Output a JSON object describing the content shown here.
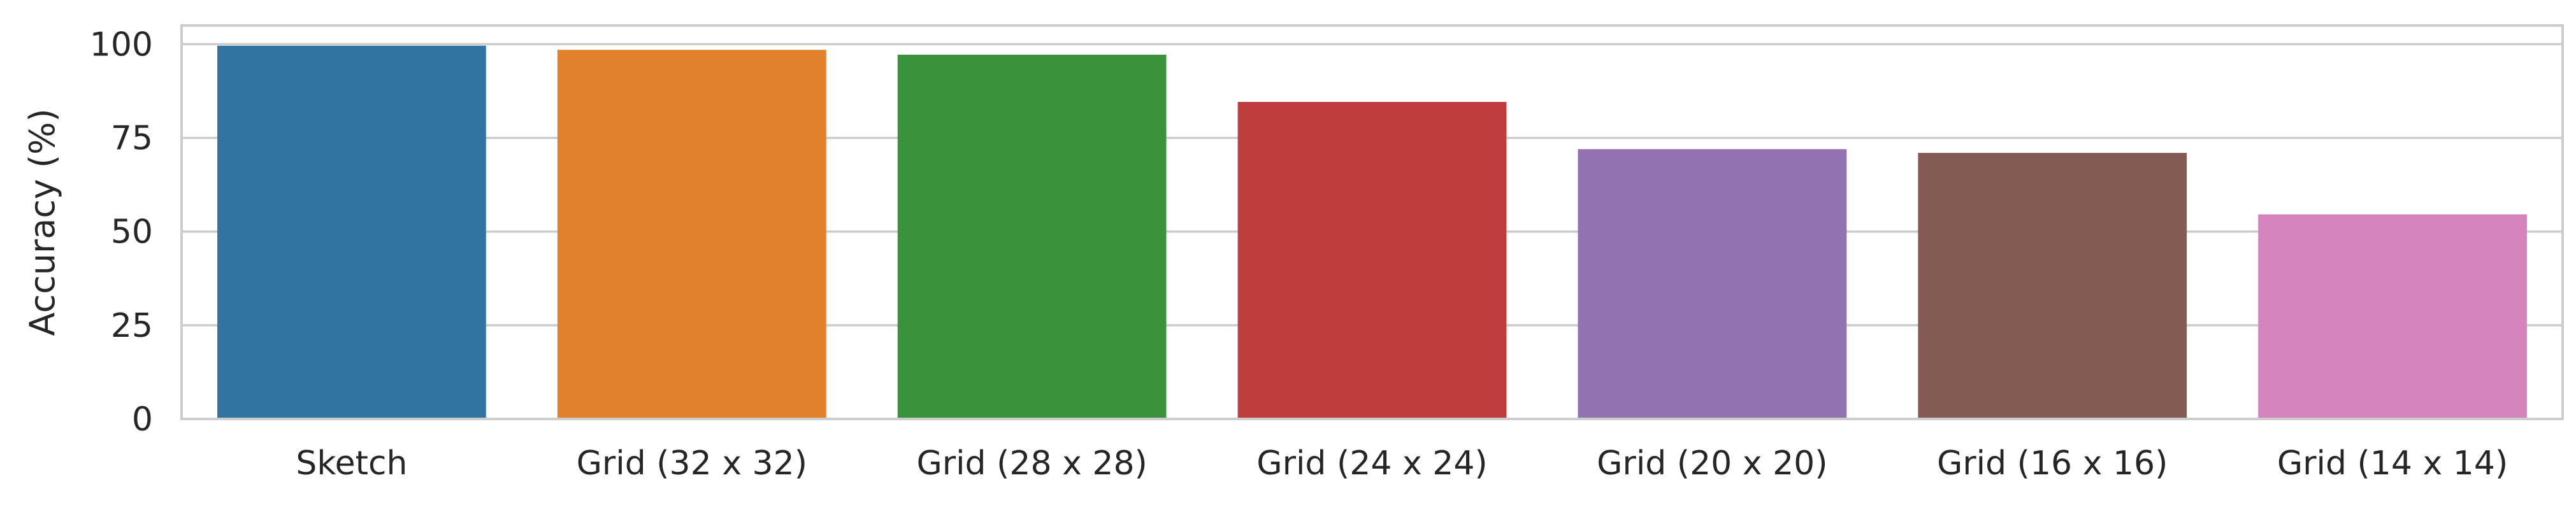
{
  "chart_data": {
    "type": "bar",
    "categories": [
      "Sketch",
      "Grid (32 x 32)",
      "Grid (28 x 28)",
      "Grid (24 x 24)",
      "Grid (20 x 20)",
      "Grid (16 x 16)",
      "Grid (14 x 14)"
    ],
    "values": [
      99.6,
      98.5,
      97.2,
      84.6,
      72.0,
      71.0,
      54.6
    ],
    "colors": [
      "#3274a1",
      "#e1812c",
      "#3a923a",
      "#c03d3e",
      "#9372b2",
      "#845b53",
      "#d684bd"
    ],
    "xlabel": "",
    "ylabel": "Accuracy (%)",
    "ylim": [
      0,
      105
    ],
    "yticks": [
      0,
      25,
      50,
      75,
      100
    ],
    "grid": "horizontal",
    "legend": "none"
  }
}
